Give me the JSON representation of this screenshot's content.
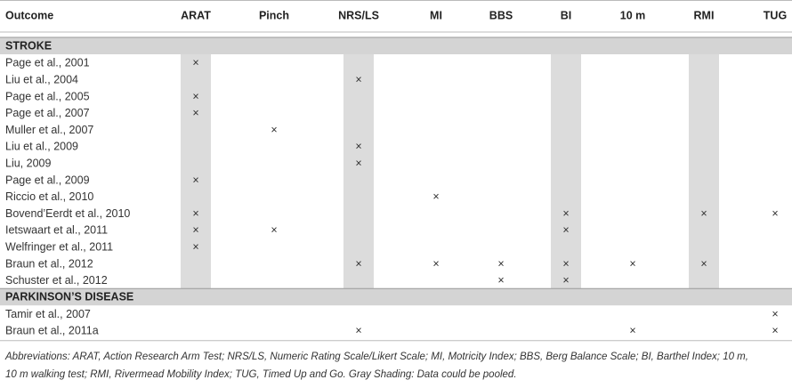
{
  "table": {
    "columns": [
      "Outcome",
      "ARAT",
      "Pinch",
      "NRS/LS",
      "MI",
      "BBS",
      "BI",
      "10 m",
      "RMI",
      "TUG"
    ],
    "sections": [
      {
        "title": "STROKE",
        "rows": [
          {
            "study": "Page et al., 2001",
            "marks": [
              "×",
              null,
              null,
              null,
              null,
              null,
              null,
              null,
              null
            ]
          },
          {
            "study": "Liu et al., 2004",
            "marks": [
              null,
              null,
              "×",
              null,
              null,
              null,
              null,
              null,
              null
            ]
          },
          {
            "study": "Page et al., 2005",
            "marks": [
              "×",
              null,
              null,
              null,
              null,
              null,
              null,
              null,
              null
            ]
          },
          {
            "study": "Page et al., 2007",
            "marks": [
              "×",
              null,
              null,
              null,
              null,
              null,
              null,
              null,
              null
            ]
          },
          {
            "study": "Muller et al., 2007",
            "marks": [
              null,
              "×",
              null,
              null,
              null,
              null,
              null,
              null,
              null
            ]
          },
          {
            "study": "Liu et al., 2009",
            "marks": [
              null,
              null,
              "×",
              null,
              null,
              null,
              null,
              null,
              null
            ]
          },
          {
            "study": "Liu, 2009",
            "marks": [
              null,
              null,
              "×",
              null,
              null,
              null,
              null,
              null,
              null
            ]
          },
          {
            "study": "Page et al., 2009",
            "marks": [
              "×",
              null,
              null,
              null,
              null,
              null,
              null,
              null,
              null
            ]
          },
          {
            "study": "Riccio et al., 2010",
            "marks": [
              null,
              null,
              null,
              "×",
              null,
              null,
              null,
              null,
              null
            ]
          },
          {
            "study": "Bovend’Eerdt et al., 2010",
            "marks": [
              "×",
              null,
              null,
              null,
              null,
              "×",
              null,
              "×",
              "×"
            ]
          },
          {
            "study": "Ietswaart et al., 2011",
            "marks": [
              "×",
              "×",
              null,
              null,
              null,
              "×",
              null,
              null,
              null
            ]
          },
          {
            "study": "Welfringer et al., 2011",
            "marks": [
              "×",
              null,
              null,
              null,
              null,
              null,
              null,
              null,
              null
            ]
          },
          {
            "study": "Braun et al., 2012",
            "marks": [
              null,
              null,
              "×",
              "×",
              "×",
              "×",
              "×",
              "×",
              null
            ]
          },
          {
            "study": "Schuster et al., 2012",
            "marks": [
              null,
              null,
              null,
              null,
              "×",
              "×",
              null,
              null,
              null
            ]
          }
        ]
      },
      {
        "title": "PARKINSON’S DISEASE",
        "rows": [
          {
            "study": "Tamir et al., 2007",
            "marks": [
              null,
              null,
              null,
              null,
              null,
              null,
              null,
              null,
              "×"
            ]
          },
          {
            "study": "Braun et al., 2011a",
            "marks": [
              null,
              null,
              "×",
              null,
              null,
              null,
              "×",
              null,
              "×"
            ]
          }
        ]
      }
    ],
    "footnote": [
      "Abbreviations: ARAT, Action Research Arm Test; NRS/LS, Numeric Rating Scale/Likert Scale; MI, Motricity Index; BBS, Berg Balance Scale; BI, Barthel Index; 10 m,",
      "10 m walking test; RMI, Rivermead Mobility Index; TUG, Timed Up and Go. Gray Shading: Data could be pooled."
    ]
  }
}
